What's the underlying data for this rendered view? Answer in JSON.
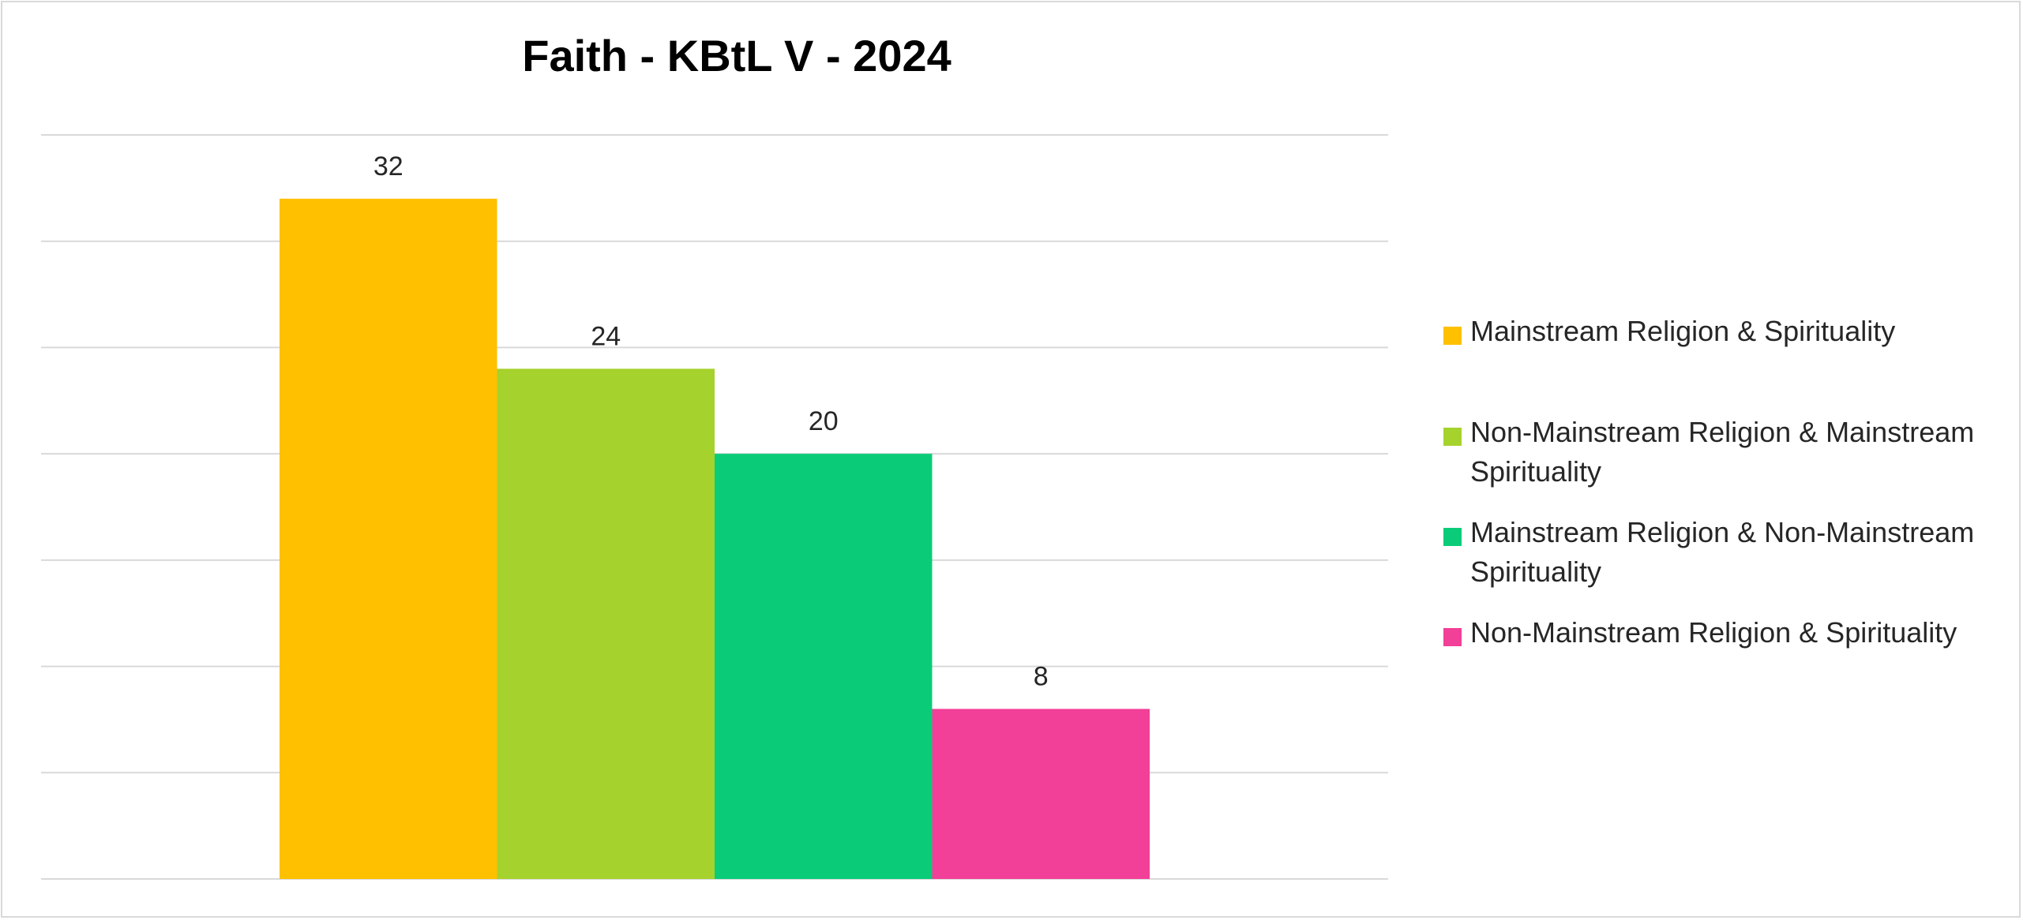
{
  "chart_data": {
    "type": "bar",
    "title": "Faith - KBtL V - 2024",
    "xlabel": "",
    "ylabel": "",
    "ylim": [
      0,
      35
    ],
    "grid": true,
    "legend_position": "right",
    "series": [
      {
        "name": "Mainstream Religion & Spirituality",
        "value": 32,
        "color": "#ffc000"
      },
      {
        "name": "Non-Mainstream Religion & Mainstream Spirituality",
        "value": 24,
        "color": "#a5d22c"
      },
      {
        "name": "Mainstream Religion & Non-Mainstream Spirituality",
        "value": 20,
        "color": "#0acc78"
      },
      {
        "name": "Non-Mainstream Religion & Spirituality",
        "value": 8,
        "color": "#f23f98"
      }
    ]
  }
}
